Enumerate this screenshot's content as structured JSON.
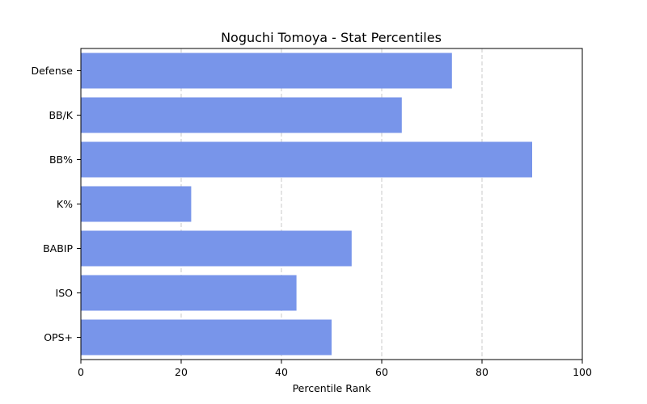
{
  "chart_data": {
    "type": "bar",
    "orientation": "horizontal",
    "title": "Noguchi Tomoya - Stat Percentiles",
    "xlabel": "Percentile Rank",
    "ylabel": "",
    "xlim": [
      0,
      100
    ],
    "xticks": [
      0,
      20,
      40,
      60,
      80,
      100
    ],
    "grid": "x-dashed",
    "bar_color": "#7895ea",
    "categories": [
      "Defense",
      "BB/K",
      "BB%",
      "K%",
      "BABIP",
      "ISO",
      "OPS+"
    ],
    "values": [
      74,
      64,
      90,
      22,
      54,
      43,
      50
    ]
  }
}
